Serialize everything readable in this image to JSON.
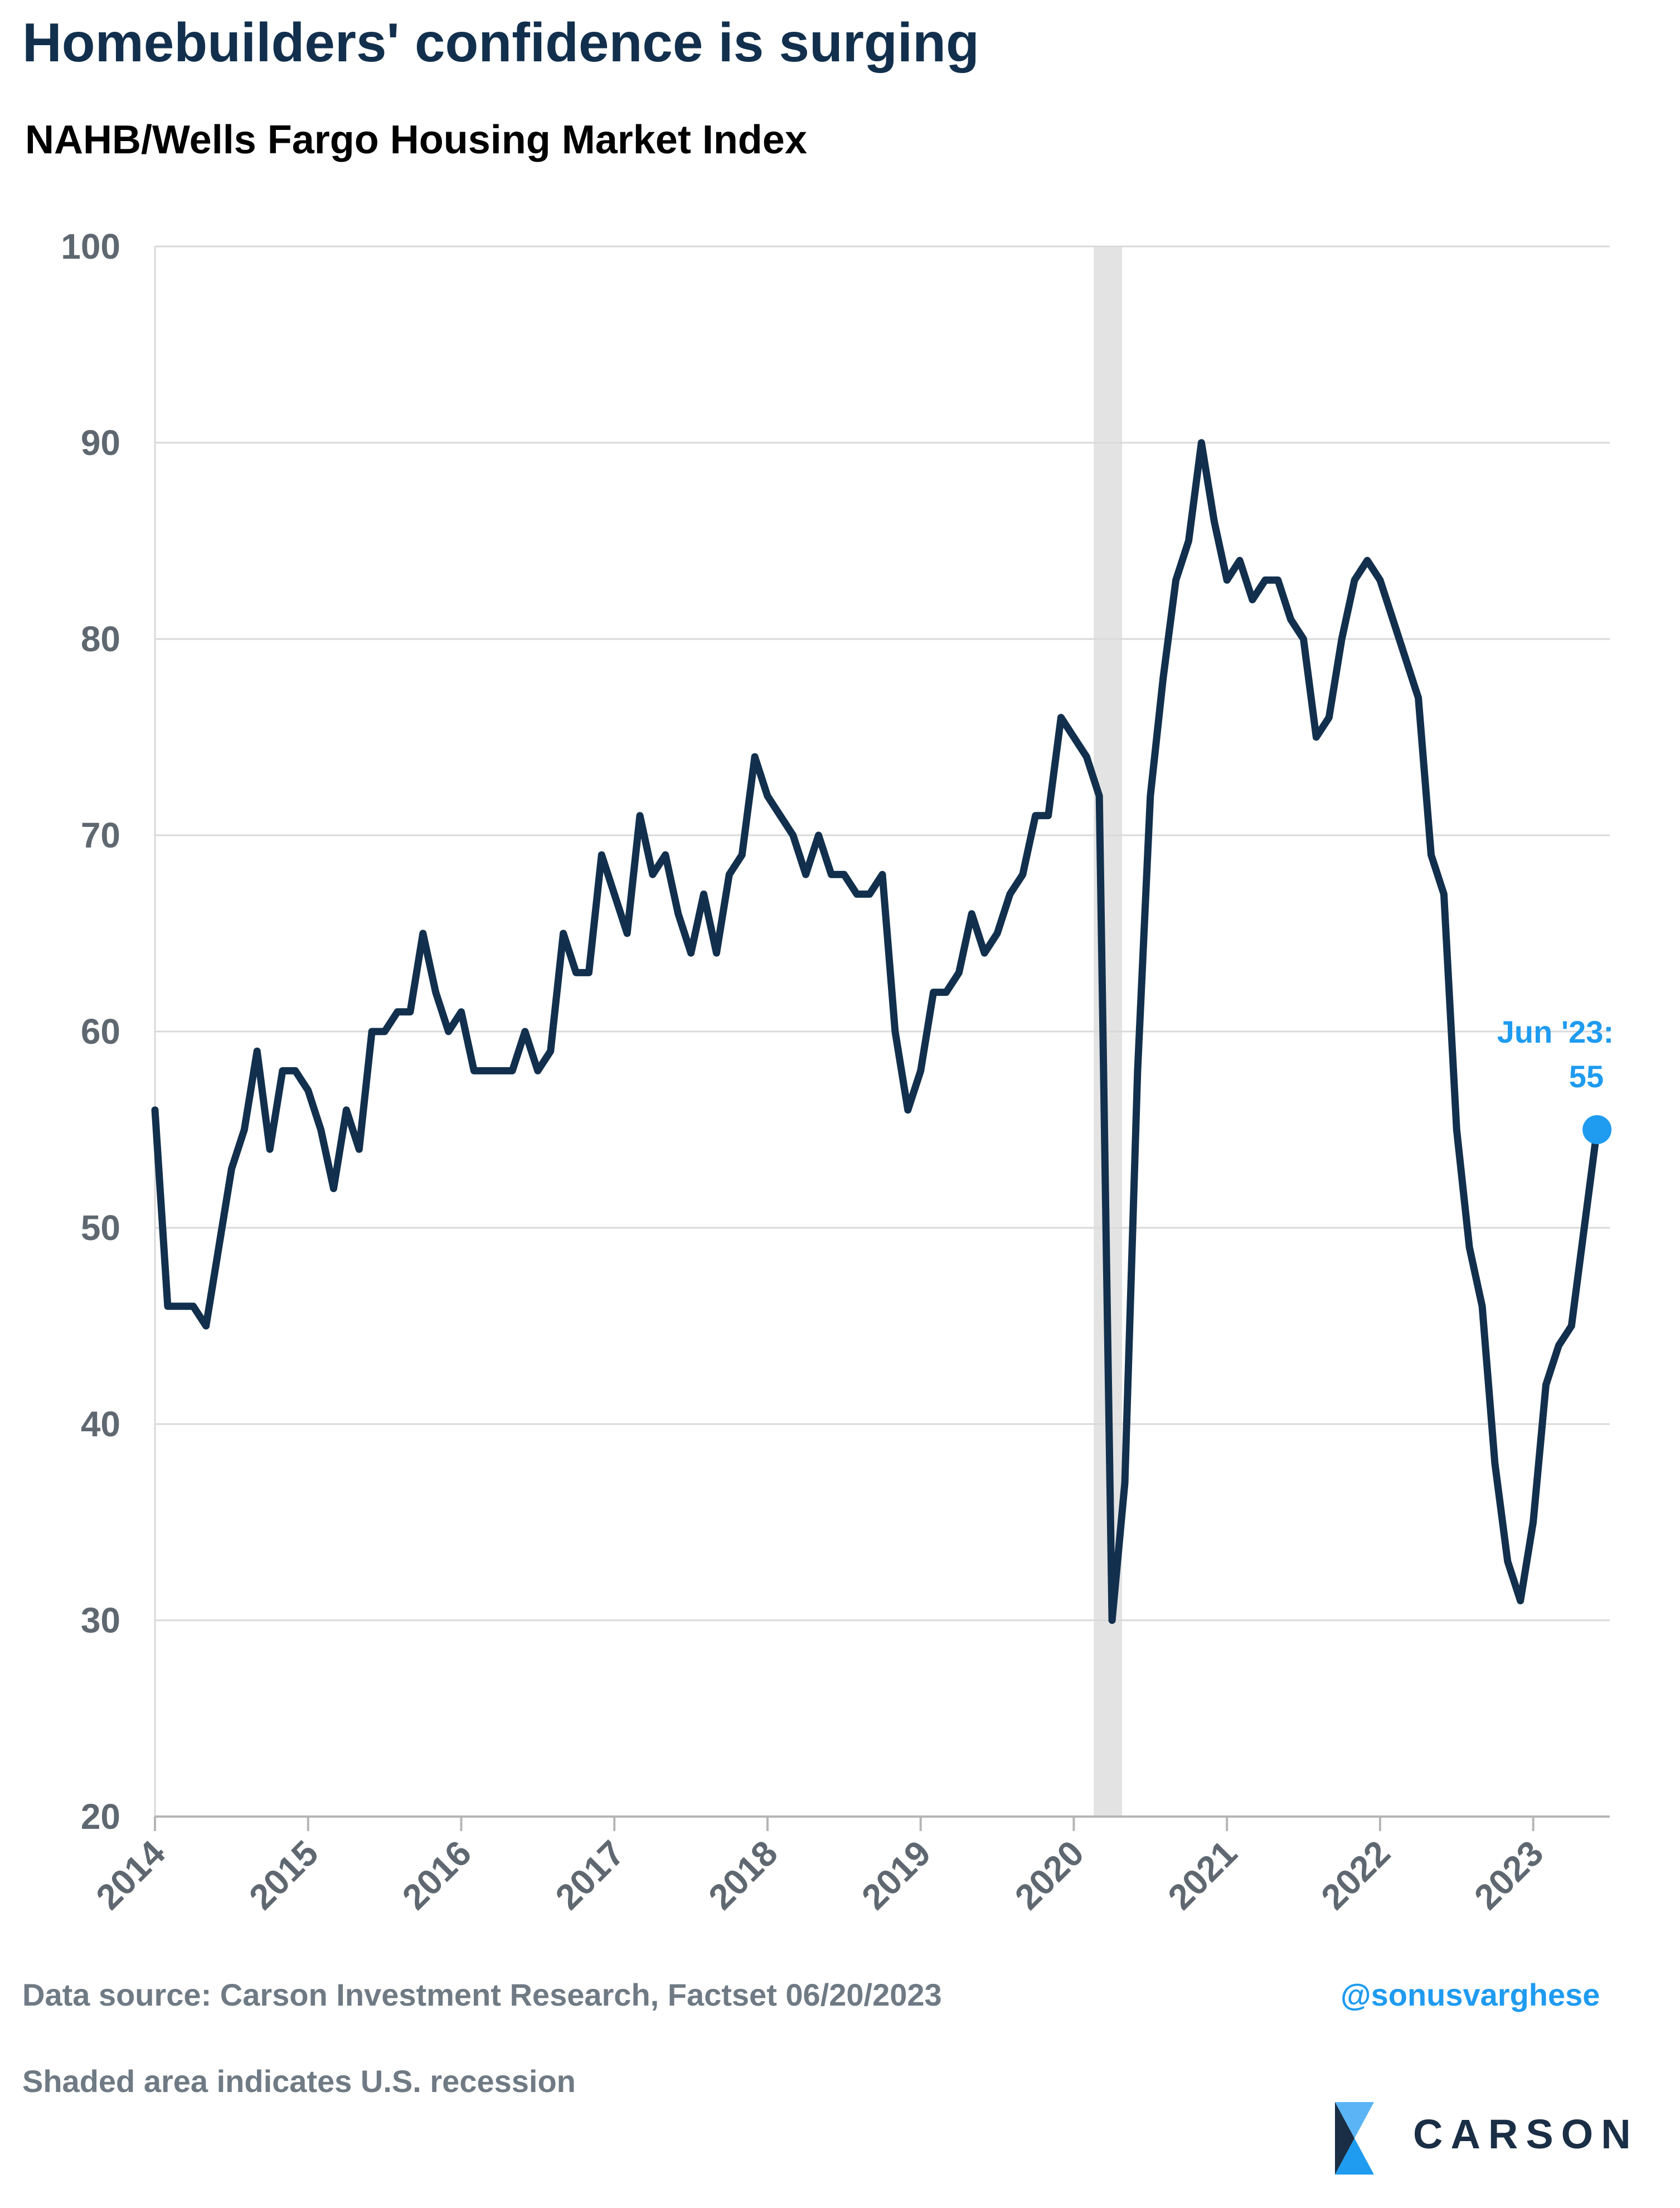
{
  "title": "Homebuilders' confidence is surging",
  "subtitle": "NAHB/Wells Fargo Housing Market Index",
  "footer": {
    "source": "Data source: Carson Investment Research, Factset   06/20/2023",
    "handle": "@sonusvarghese",
    "note": "Shaded area indicates U.S. recession",
    "brand": "CARSON"
  },
  "colors": {
    "line": "#12304d",
    "accent": "#1f9bf0",
    "recession": "#e3e3e3",
    "grid": "#d9d9d9",
    "axis_text": "#5f6870"
  },
  "chart_data": {
    "type": "line",
    "title": "NAHB/Wells Fargo Housing Market Index",
    "xlabel": "",
    "ylabel": "",
    "ylim": [
      20,
      100
    ],
    "yticks": [
      20,
      30,
      40,
      50,
      60,
      70,
      80,
      90,
      100
    ],
    "xticks": [
      "2014",
      "2015",
      "2016",
      "2017",
      "2018",
      "2019",
      "2020",
      "2021",
      "2022",
      "2023"
    ],
    "grid": true,
    "recession": {
      "start": "2020-03",
      "end": "2020-04"
    },
    "annotation": {
      "line1": "Jun '23:",
      "line2": "55",
      "x": "2023-06",
      "y": 55
    },
    "series": [
      {
        "x": [
          "2014-01",
          "2014-02",
          "2014-03",
          "2014-04",
          "2014-05",
          "2014-06",
          "2014-07",
          "2014-08",
          "2014-09",
          "2014-10",
          "2014-11",
          "2014-12",
          "2015-01",
          "2015-02",
          "2015-03",
          "2015-04",
          "2015-05",
          "2015-06",
          "2015-07",
          "2015-08",
          "2015-09",
          "2015-10",
          "2015-11",
          "2015-12",
          "2016-01",
          "2016-02",
          "2016-03",
          "2016-04",
          "2016-05",
          "2016-06",
          "2016-07",
          "2016-08",
          "2016-09",
          "2016-10",
          "2016-11",
          "2016-12",
          "2017-01",
          "2017-02",
          "2017-03",
          "2017-04",
          "2017-05",
          "2017-06",
          "2017-07",
          "2017-08",
          "2017-09",
          "2017-10",
          "2017-11",
          "2017-12",
          "2018-01",
          "2018-02",
          "2018-03",
          "2018-04",
          "2018-05",
          "2018-06",
          "2018-07",
          "2018-08",
          "2018-09",
          "2018-10",
          "2018-11",
          "2018-12",
          "2019-01",
          "2019-02",
          "2019-03",
          "2019-04",
          "2019-05",
          "2019-06",
          "2019-07",
          "2019-08",
          "2019-09",
          "2019-10",
          "2019-11",
          "2019-12",
          "2020-01",
          "2020-02",
          "2020-03",
          "2020-04",
          "2020-05",
          "2020-06",
          "2020-07",
          "2020-08",
          "2020-09",
          "2020-10",
          "2020-11",
          "2020-12",
          "2021-01",
          "2021-02",
          "2021-03",
          "2021-04",
          "2021-05",
          "2021-06",
          "2021-07",
          "2021-08",
          "2021-09",
          "2021-10",
          "2021-11",
          "2021-12",
          "2022-01",
          "2022-02",
          "2022-03",
          "2022-04",
          "2022-05",
          "2022-06",
          "2022-07",
          "2022-08",
          "2022-09",
          "2022-10",
          "2022-11",
          "2022-12",
          "2023-01",
          "2023-02",
          "2023-03",
          "2023-04",
          "2023-05",
          "2023-06"
        ],
        "values": [
          56,
          46,
          46,
          46,
          45,
          49,
          53,
          55,
          59,
          54,
          58,
          58,
          57,
          55,
          52,
          56,
          54,
          60,
          60,
          61,
          61,
          65,
          62,
          60,
          61,
          58,
          58,
          58,
          58,
          60,
          58,
          59,
          65,
          63,
          63,
          69,
          67,
          65,
          71,
          68,
          69,
          66,
          64,
          67,
          64,
          68,
          69,
          74,
          72,
          71,
          70,
          68,
          70,
          68,
          68,
          67,
          67,
          68,
          60,
          56,
          58,
          62,
          62,
          63,
          66,
          64,
          65,
          67,
          68,
          71,
          71,
          76,
          75,
          74,
          72,
          30,
          37,
          58,
          72,
          78,
          83,
          85,
          90,
          86,
          83,
          84,
          82,
          83,
          83,
          81,
          80,
          75,
          76,
          80,
          83,
          84,
          83,
          81,
          79,
          77,
          69,
          67,
          55,
          49,
          46,
          38,
          33,
          31,
          35,
          42,
          44,
          45,
          50,
          55
        ]
      }
    ]
  }
}
